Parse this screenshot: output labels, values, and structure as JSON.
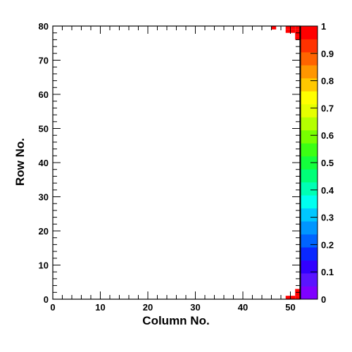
{
  "chart_data": {
    "type": "heatmap",
    "xlabel": "Column No.",
    "ylabel": "Row No.",
    "xlim": [
      0,
      52
    ],
    "ylim": [
      0,
      80
    ],
    "x_ticks": [
      0,
      10,
      20,
      30,
      40,
      50
    ],
    "y_ticks": [
      0,
      10,
      20,
      30,
      40,
      50,
      60,
      70,
      80
    ],
    "zlim": [
      0,
      1
    ],
    "z_ticks": [
      0,
      0.1,
      0.2,
      0.3,
      0.4,
      0.5,
      0.6,
      0.7,
      0.8,
      0.9,
      1
    ],
    "cells": [
      {
        "col": 46,
        "row": 79,
        "value": 1
      },
      {
        "col": 49,
        "row": 79,
        "value": 1
      },
      {
        "col": 50,
        "row": 79,
        "value": 1
      },
      {
        "col": 51,
        "row": 79,
        "value": 1
      },
      {
        "col": 49,
        "row": 78,
        "value": 1
      },
      {
        "col": 50,
        "row": 78,
        "value": 1
      },
      {
        "col": 51,
        "row": 78,
        "value": 1
      },
      {
        "col": 51,
        "row": 77,
        "value": 1
      },
      {
        "col": 51,
        "row": 76,
        "value": 1
      },
      {
        "col": 51,
        "row": 2,
        "value": 1
      },
      {
        "col": 51,
        "row": 1,
        "value": 1
      },
      {
        "col": 49,
        "row": 0,
        "value": 1
      },
      {
        "col": 50,
        "row": 0,
        "value": 1
      },
      {
        "col": 51,
        "row": 0,
        "value": 1
      }
    ],
    "palette": [
      "#7f00ff",
      "#5a14ff",
      "#3200ff",
      "#0a28ff",
      "#0064ff",
      "#0096ff",
      "#00c8ff",
      "#00fff0",
      "#00ffb4",
      "#00ff78",
      "#14ff3c",
      "#3cff14",
      "#78ff00",
      "#b4ff00",
      "#e6ff00",
      "#ffff00",
      "#ffc800",
      "#ff9600",
      "#ff6400",
      "#ff3200",
      "#ff0000"
    ]
  }
}
